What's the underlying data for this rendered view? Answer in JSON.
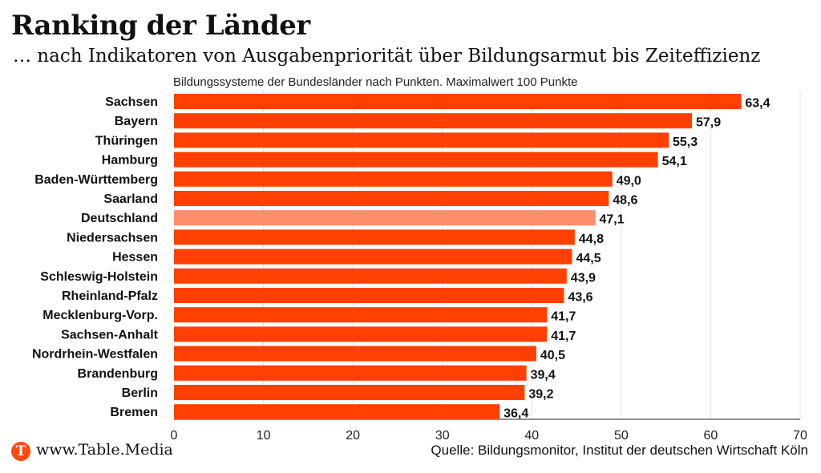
{
  "header": {
    "title": "Ranking der Länder",
    "subtitle": "… nach Indikatoren von Ausgabenpriorität über Bildungsarmut bis Zeiteffizienz"
  },
  "footer": {
    "logo_letter": "T",
    "site": "www.Table.Media",
    "source": "Quelle: Bildungsmonitor, Institut der deutschen Wirtschaft Köln"
  },
  "colors": {
    "bar": "#ff4000",
    "highlight_bar": "#ff8c6b",
    "grid": "#e3e3e3",
    "logo": "#ff4a0d"
  },
  "chart_data": {
    "type": "bar",
    "orientation": "horizontal",
    "note": "Bildungssysteme der Bundesländer nach Punkten. Maximalwert 100 Punkte",
    "categories": [
      "Sachsen",
      "Bayern",
      "Thüringen",
      "Hamburg",
      "Baden-Württemberg",
      "Saarland",
      "Deutschland",
      "Niedersachsen",
      "Hessen",
      "Schleswig-Holstein",
      "Rheinland-Pfalz",
      "Mecklenburg-Vorp.",
      "Sachsen-Anhalt",
      "Nordrhein-Westfalen",
      "Brandenburg",
      "Berlin",
      "Bremen"
    ],
    "values": [
      63.4,
      57.9,
      55.3,
      54.1,
      49.0,
      48.6,
      47.1,
      44.8,
      44.5,
      43.9,
      43.6,
      41.7,
      41.7,
      40.5,
      39.4,
      39.2,
      36.4
    ],
    "value_labels": [
      "63,4",
      "57,9",
      "55,3",
      "54,1",
      "49,0",
      "48,6",
      "47,1",
      "44,8",
      "44,5",
      "43,9",
      "43,6",
      "41,7",
      "41,7",
      "40,5",
      "39,4",
      "39,2",
      "36,4"
    ],
    "highlight": [
      "Deutschland"
    ],
    "xlim": [
      0,
      70
    ],
    "xticks": [
      0,
      10,
      20,
      30,
      40,
      50,
      60,
      70
    ],
    "grid": true,
    "legend": false
  }
}
